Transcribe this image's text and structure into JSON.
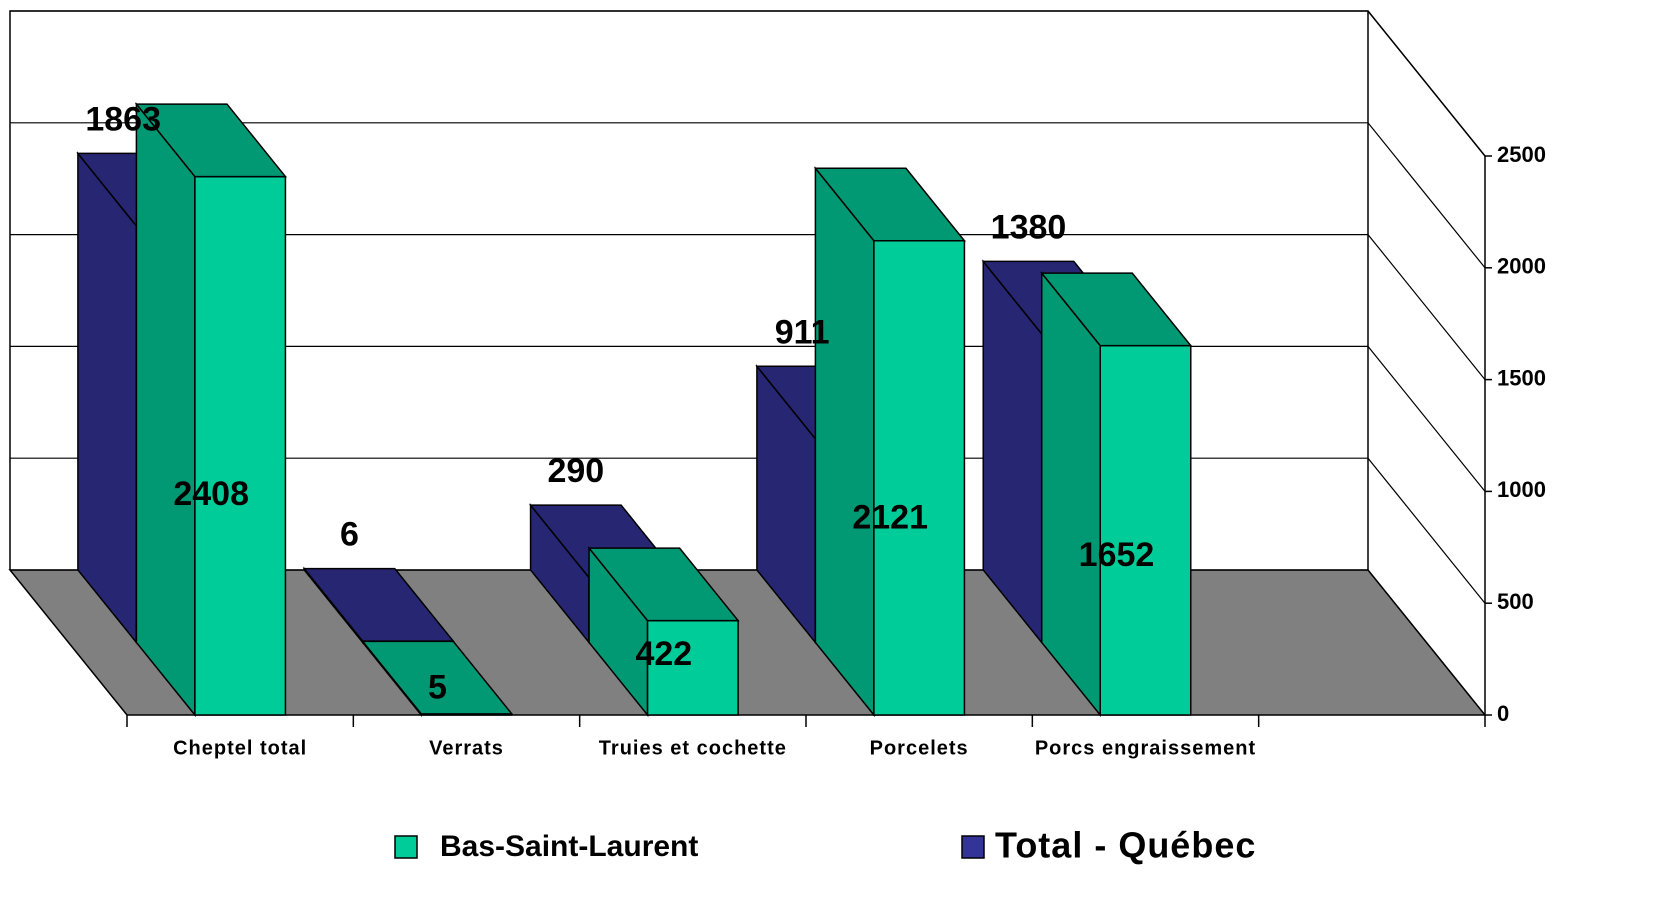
{
  "chart_data": {
    "type": "bar3d",
    "categories": [
      "Cheptel total",
      "Verrats",
      "Truies et cochette",
      "Porcelets",
      "Porcs engraissement",
      null
    ],
    "series": [
      {
        "name": "Bas-Saint-Laurent",
        "color": "#00cc99",
        "values": [
          2408,
          5,
          422,
          2121,
          1652,
          null
        ]
      },
      {
        "name": "Total - Québec",
        "color": "#333399",
        "values": [
          1863,
          6,
          290,
          911,
          1380,
          null
        ]
      }
    ],
    "ylim": [
      0,
      2500
    ],
    "yticks": [
      0,
      500,
      1000,
      1500,
      2000,
      2500
    ],
    "grid": true
  }
}
